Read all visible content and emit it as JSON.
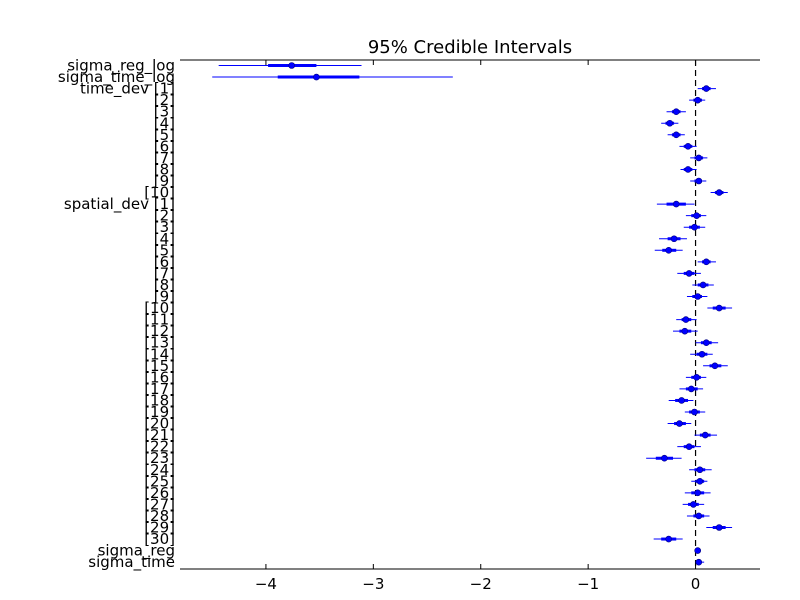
{
  "chart_data": {
    "type": "forest",
    "title": "95% Credible Intervals",
    "xlabel": "",
    "ylabel": "",
    "xlim": [
      -4.8,
      0.6
    ],
    "x_ticks": [
      -4,
      -3,
      -2,
      -1,
      0
    ],
    "x_tick_labels": [
      "−4",
      "−3",
      "−2",
      "−1",
      "0"
    ],
    "reference_line": 0,
    "color": "#0000ff",
    "rows": [
      {
        "label": "sigma_reg_log",
        "mean": -3.76,
        "lo": -4.44,
        "hi": -3.11,
        "qlo": -3.98,
        "qhi": -3.53
      },
      {
        "label": "sigma_time_log",
        "mean": -3.53,
        "lo": -4.5,
        "hi": -2.26,
        "qlo": -3.89,
        "qhi": -3.13
      },
      {
        "label": "time_dev [1]",
        "mean": 0.1,
        "lo": 0.02,
        "hi": 0.19,
        "qlo": 0.06,
        "qhi": 0.14
      },
      {
        "label": "[2]",
        "mean": 0.02,
        "lo": -0.06,
        "hi": 0.09,
        "qlo": -0.02,
        "qhi": 0.06
      },
      {
        "label": "[3]",
        "mean": -0.18,
        "lo": -0.27,
        "hi": -0.09,
        "qlo": -0.22,
        "qhi": -0.14
      },
      {
        "label": "[4]",
        "mean": -0.24,
        "lo": -0.32,
        "hi": -0.16,
        "qlo": -0.28,
        "qhi": -0.2
      },
      {
        "label": "[5]",
        "mean": -0.18,
        "lo": -0.26,
        "hi": -0.1,
        "qlo": -0.22,
        "qhi": -0.14
      },
      {
        "label": "[6]",
        "mean": -0.07,
        "lo": -0.15,
        "hi": 0.01,
        "qlo": -0.11,
        "qhi": -0.03
      },
      {
        "label": "[7]",
        "mean": 0.03,
        "lo": -0.05,
        "hi": 0.11,
        "qlo": -0.01,
        "qhi": 0.07
      },
      {
        "label": "[8]",
        "mean": -0.07,
        "lo": -0.14,
        "hi": 0.01,
        "qlo": -0.11,
        "qhi": -0.03
      },
      {
        "label": "[9]",
        "mean": 0.03,
        "lo": -0.05,
        "hi": 0.1,
        "qlo": -0.01,
        "qhi": 0.06
      },
      {
        "label": "[10]",
        "mean": 0.22,
        "lo": 0.14,
        "hi": 0.3,
        "qlo": 0.18,
        "qhi": 0.26
      },
      {
        "label": "spatial_dev [1]",
        "mean": -0.18,
        "lo": -0.36,
        "hi": -0.01,
        "qlo": -0.27,
        "qhi": -0.09
      },
      {
        "label": "[2]",
        "mean": 0.01,
        "lo": -0.09,
        "hi": 0.1,
        "qlo": -0.04,
        "qhi": 0.05
      },
      {
        "label": "[3]",
        "mean": -0.01,
        "lo": -0.11,
        "hi": 0.09,
        "qlo": -0.06,
        "qhi": 0.04
      },
      {
        "label": "[4]",
        "mean": -0.2,
        "lo": -0.34,
        "hi": -0.08,
        "qlo": -0.26,
        "qhi": -0.14
      },
      {
        "label": "[5]",
        "mean": -0.25,
        "lo": -0.38,
        "hi": -0.12,
        "qlo": -0.31,
        "qhi": -0.18
      },
      {
        "label": "[6]",
        "mean": 0.1,
        "lo": 0.02,
        "hi": 0.19,
        "qlo": 0.06,
        "qhi": 0.14
      },
      {
        "label": "[7]",
        "mean": -0.06,
        "lo": -0.17,
        "hi": 0.05,
        "qlo": -0.11,
        "qhi": -0.01
      },
      {
        "label": "[8]",
        "mean": 0.07,
        "lo": -0.03,
        "hi": 0.17,
        "qlo": 0.02,
        "qhi": 0.12
      },
      {
        "label": "[9]",
        "mean": 0.02,
        "lo": -0.08,
        "hi": 0.11,
        "qlo": -0.03,
        "qhi": 0.06
      },
      {
        "label": "[10]",
        "mean": 0.22,
        "lo": 0.11,
        "hi": 0.34,
        "qlo": 0.16,
        "qhi": 0.28
      },
      {
        "label": "[11]",
        "mean": -0.09,
        "lo": -0.18,
        "hi": 0.01,
        "qlo": -0.13,
        "qhi": -0.04
      },
      {
        "label": "[12]",
        "mean": -0.1,
        "lo": -0.21,
        "hi": 0.02,
        "qlo": -0.15,
        "qhi": -0.04
      },
      {
        "label": "[13]",
        "mean": 0.1,
        "lo": 0.0,
        "hi": 0.21,
        "qlo": 0.05,
        "qhi": 0.15
      },
      {
        "label": "[14]",
        "mean": 0.06,
        "lo": -0.05,
        "hi": 0.16,
        "qlo": 0.01,
        "qhi": 0.11
      },
      {
        "label": "[15]",
        "mean": 0.18,
        "lo": 0.07,
        "hi": 0.3,
        "qlo": 0.13,
        "qhi": 0.24
      },
      {
        "label": "[16]",
        "mean": 0.01,
        "lo": -0.09,
        "hi": 0.1,
        "qlo": -0.04,
        "qhi": 0.05
      },
      {
        "label": "[17]",
        "mean": -0.04,
        "lo": -0.15,
        "hi": 0.07,
        "qlo": -0.09,
        "qhi": 0.02
      },
      {
        "label": "[18]",
        "mean": -0.13,
        "lo": -0.25,
        "hi": -0.02,
        "qlo": -0.19,
        "qhi": -0.07
      },
      {
        "label": "[19]",
        "mean": -0.01,
        "lo": -0.1,
        "hi": 0.09,
        "qlo": -0.06,
        "qhi": 0.04
      },
      {
        "label": "[20]",
        "mean": -0.15,
        "lo": -0.26,
        "hi": -0.04,
        "qlo": -0.2,
        "qhi": -0.09
      },
      {
        "label": "[21]",
        "mean": 0.09,
        "lo": -0.01,
        "hi": 0.2,
        "qlo": 0.04,
        "qhi": 0.14
      },
      {
        "label": "[22]",
        "mean": -0.06,
        "lo": -0.17,
        "hi": 0.05,
        "qlo": -0.11,
        "qhi": -0.01
      },
      {
        "label": "[23]",
        "mean": -0.29,
        "lo": -0.46,
        "hi": -0.13,
        "qlo": -0.37,
        "qhi": -0.21
      },
      {
        "label": "[24]",
        "mean": 0.04,
        "lo": -0.06,
        "hi": 0.15,
        "qlo": -0.01,
        "qhi": 0.09
      },
      {
        "label": "[25]",
        "mean": 0.04,
        "lo": -0.04,
        "hi": 0.11,
        "qlo": 0.0,
        "qhi": 0.08
      },
      {
        "label": "[26]",
        "mean": 0.02,
        "lo": -0.1,
        "hi": 0.14,
        "qlo": -0.04,
        "qhi": 0.08
      },
      {
        "label": "[27]",
        "mean": -0.02,
        "lo": -0.12,
        "hi": 0.08,
        "qlo": -0.07,
        "qhi": 0.03
      },
      {
        "label": "[28]",
        "mean": 0.03,
        "lo": -0.08,
        "hi": 0.13,
        "qlo": -0.02,
        "qhi": 0.08
      },
      {
        "label": "[29]",
        "mean": 0.22,
        "lo": 0.1,
        "hi": 0.34,
        "qlo": 0.16,
        "qhi": 0.28
      },
      {
        "label": "[30]",
        "mean": -0.25,
        "lo": -0.39,
        "hi": -0.12,
        "qlo": -0.32,
        "qhi": -0.18
      },
      {
        "label": "sigma_reg",
        "mean": 0.02,
        "lo": 0.01,
        "hi": 0.04,
        "qlo": 0.015,
        "qhi": 0.03
      },
      {
        "label": "sigma_time",
        "mean": 0.03,
        "lo": 0.01,
        "hi": 0.08,
        "qlo": 0.02,
        "qhi": 0.05
      }
    ]
  }
}
